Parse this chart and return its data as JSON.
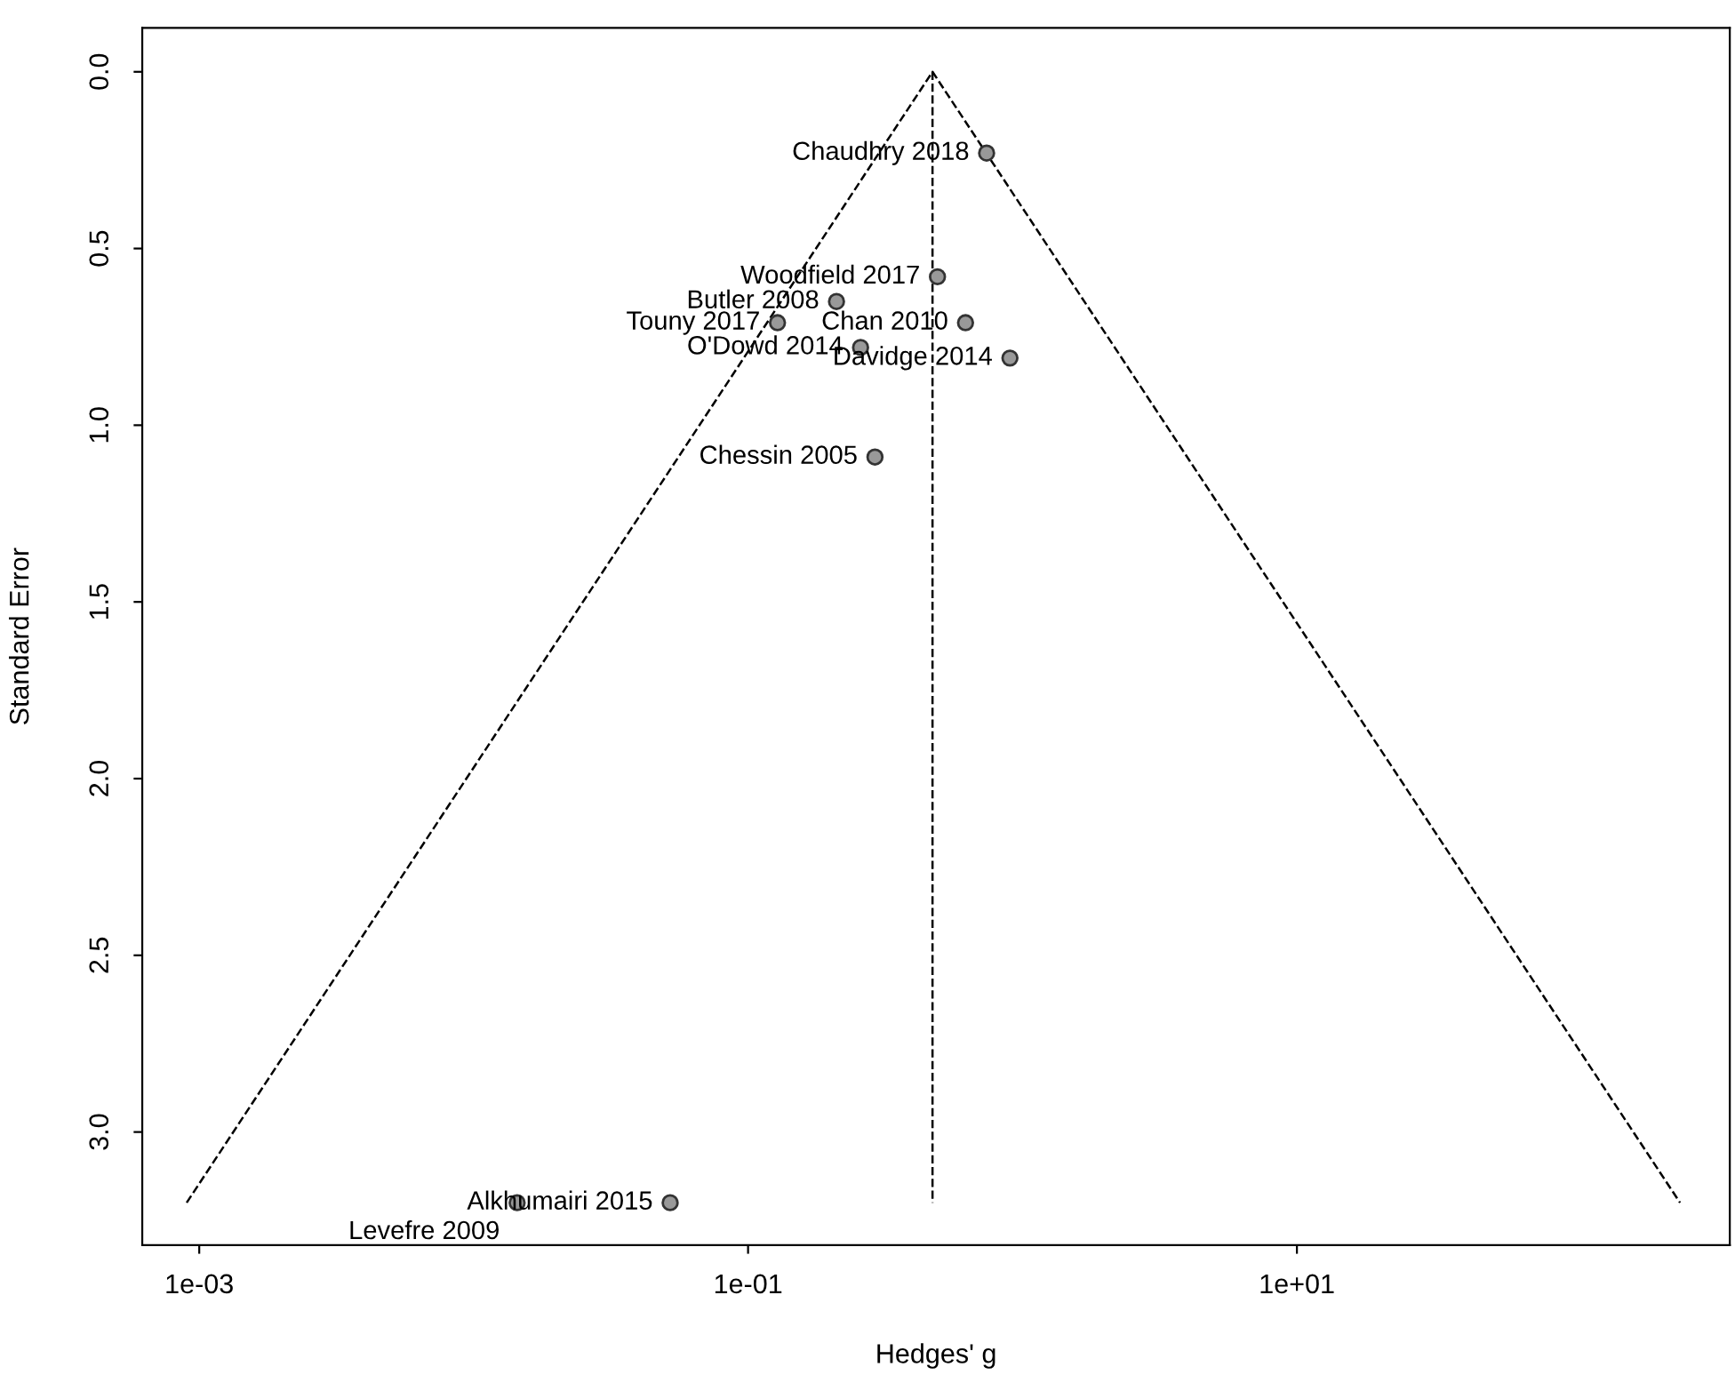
{
  "chart_data": {
    "type": "scatter",
    "xlabel": "Hedges' g",
    "ylabel": "Standard Error",
    "log": "x",
    "grid": false,
    "legend": false,
    "marker": "circle",
    "xlim": [
      0.00062,
      378
    ],
    "ylim": [
      3.32,
      -0.124
    ],
    "xticks": [
      {
        "value": 0.001,
        "label": "1e-03"
      },
      {
        "value": 0.1,
        "label": "1e-01"
      },
      {
        "value": 10,
        "label": "1e+01"
      }
    ],
    "yticks": [
      {
        "value": 0,
        "label": "0.0"
      },
      {
        "value": 0.5,
        "label": "0.5"
      },
      {
        "value": 1,
        "label": "1.0"
      },
      {
        "value": 1.5,
        "label": "1.5"
      },
      {
        "value": 2,
        "label": "2.0"
      },
      {
        "value": 2.5,
        "label": "2.5"
      },
      {
        "value": 3,
        "label": "3.0"
      }
    ],
    "series": [
      {
        "type": "line",
        "line_style": "dashed",
        "marker": "none",
        "color": "#000000",
        "x": [
          0.0009,
          0.47,
          249
        ],
        "values": [
          3.2,
          0,
          3.2
        ]
      },
      {
        "type": "line",
        "line_style": "dashed",
        "marker": "none",
        "color": "#000000",
        "x": [
          0.47,
          0.47
        ],
        "values": [
          0,
          3.2
        ]
      },
      {
        "color": "#999999",
        "x": [
          0.74,
          0.49,
          0.21,
          0.128,
          0.62,
          0.257,
          0.9,
          0.29,
          0.052,
          0.0144
        ],
        "values": [
          0.23,
          0.58,
          0.65,
          0.71,
          0.71,
          0.78,
          0.81,
          1.09,
          3.2,
          3.2
        ]
      }
    ],
    "annotations": [
      {
        "text": "Chaudhry 2018",
        "x": 0.74,
        "y": 0.23
      },
      {
        "text": "Woodfield 2017",
        "x": 0.49,
        "y": 0.58
      },
      {
        "text": "Butler 2008",
        "x": 0.21,
        "y": 0.65
      },
      {
        "text": "Touny 2017",
        "x": 0.128,
        "y": 0.71
      },
      {
        "text": "Chan 2010",
        "x": 0.62,
        "y": 0.71
      },
      {
        "text": "O'Dowd 2014",
        "x": 0.257,
        "y": 0.78
      },
      {
        "text": "Davidge 2014",
        "x": 0.9,
        "y": 0.81
      },
      {
        "text": "Chessin 2005",
        "x": 0.29,
        "y": 1.09
      },
      {
        "text": "Alkhumairi 2015",
        "x": 0.052,
        "y": 3.2
      },
      {
        "text": "Levefre 2009",
        "x": 0.0144,
        "y": 3.2
      }
    ]
  }
}
